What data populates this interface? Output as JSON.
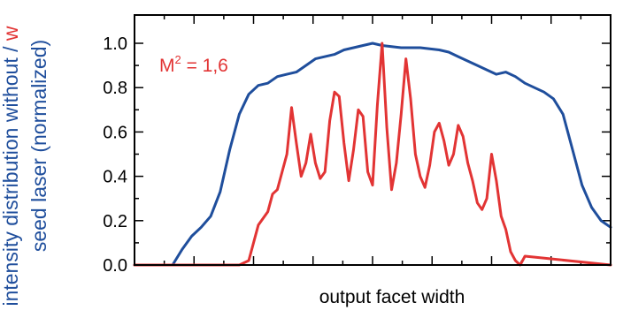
{
  "chart_data": {
    "type": "line",
    "xlabel": "output facet width",
    "ylabel": {
      "line1_prefix": "intensity distribution without / ",
      "line1_suffix": "w",
      "line2": "seed laser (normalized)"
    },
    "annotation": {
      "base": "M",
      "superscript": "2",
      "rest": " = 1,6"
    },
    "xlim": [
      0,
      1
    ],
    "ylim": [
      0,
      1.0
    ],
    "yticks": [
      "0.0",
      "0.2",
      "0.4",
      "0.6",
      "0.8",
      "1.0"
    ],
    "grid": false,
    "series": [
      {
        "color": "#1f4e9c",
        "x": [
          0.0,
          0.05,
          0.08,
          0.1,
          0.12,
          0.14,
          0.16,
          0.18,
          0.2,
          0.22,
          0.24,
          0.26,
          0.28,
          0.3,
          0.32,
          0.34,
          0.36,
          0.38,
          0.4,
          0.42,
          0.44,
          0.46,
          0.48,
          0.5,
          0.52,
          0.54,
          0.56,
          0.58,
          0.6,
          0.62,
          0.64,
          0.66,
          0.68,
          0.7,
          0.72,
          0.74,
          0.76,
          0.78,
          0.8,
          0.82,
          0.84,
          0.86,
          0.88,
          0.9,
          0.92,
          0.94,
          0.96,
          0.98,
          1.0
        ],
        "y": [
          0.0,
          0.0,
          0.0,
          0.07,
          0.13,
          0.17,
          0.22,
          0.33,
          0.52,
          0.68,
          0.77,
          0.81,
          0.82,
          0.85,
          0.86,
          0.87,
          0.9,
          0.93,
          0.94,
          0.95,
          0.97,
          0.98,
          0.99,
          1.0,
          0.99,
          0.985,
          0.98,
          0.98,
          0.98,
          0.975,
          0.97,
          0.96,
          0.94,
          0.92,
          0.9,
          0.88,
          0.86,
          0.87,
          0.85,
          0.82,
          0.8,
          0.78,
          0.75,
          0.68,
          0.52,
          0.36,
          0.26,
          0.2,
          0.17
        ]
      },
      {
        "color": "#e23434",
        "x": [
          0.0,
          0.22,
          0.24,
          0.26,
          0.28,
          0.29,
          0.3,
          0.31,
          0.32,
          0.33,
          0.34,
          0.35,
          0.36,
          0.37,
          0.38,
          0.39,
          0.4,
          0.41,
          0.42,
          0.43,
          0.44,
          0.45,
          0.46,
          0.47,
          0.48,
          0.49,
          0.5,
          0.51,
          0.52,
          0.53,
          0.54,
          0.55,
          0.56,
          0.57,
          0.58,
          0.59,
          0.6,
          0.61,
          0.62,
          0.63,
          0.64,
          0.65,
          0.66,
          0.67,
          0.68,
          0.69,
          0.7,
          0.71,
          0.72,
          0.73,
          0.74,
          0.75,
          0.76,
          0.77,
          0.78,
          0.79,
          0.8,
          0.81,
          0.82,
          1.0
        ],
        "y": [
          0.0,
          0.0,
          0.02,
          0.18,
          0.24,
          0.32,
          0.34,
          0.42,
          0.5,
          0.71,
          0.55,
          0.4,
          0.46,
          0.59,
          0.46,
          0.39,
          0.42,
          0.65,
          0.78,
          0.76,
          0.55,
          0.38,
          0.52,
          0.7,
          0.67,
          0.42,
          0.36,
          0.72,
          1.0,
          0.62,
          0.34,
          0.46,
          0.68,
          0.93,
          0.75,
          0.5,
          0.4,
          0.35,
          0.45,
          0.6,
          0.64,
          0.56,
          0.45,
          0.5,
          0.63,
          0.58,
          0.46,
          0.38,
          0.28,
          0.25,
          0.3,
          0.5,
          0.38,
          0.22,
          0.16,
          0.06,
          0.02,
          0.0,
          0.04,
          0.0
        ]
      }
    ]
  }
}
